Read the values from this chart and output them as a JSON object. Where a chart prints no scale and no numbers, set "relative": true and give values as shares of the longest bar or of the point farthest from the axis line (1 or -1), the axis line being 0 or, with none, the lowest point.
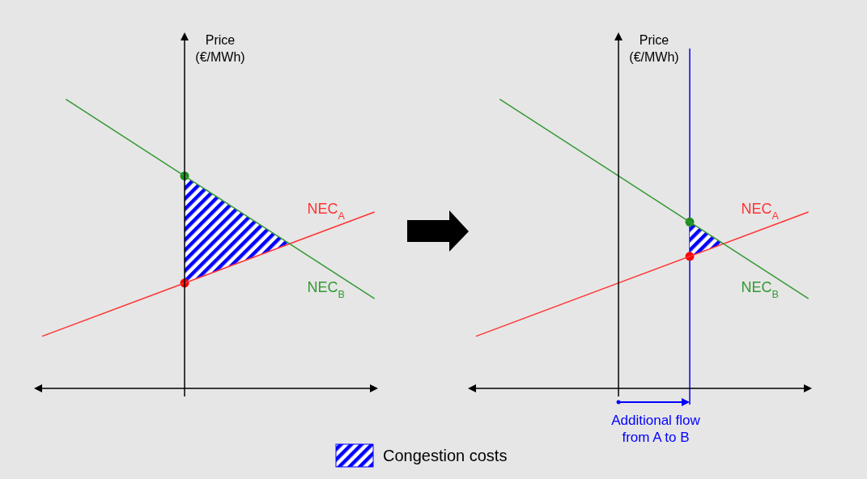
{
  "chart_data": [
    {
      "type": "line",
      "relative": true,
      "ylabel": "Price\n(€/MWh)",
      "categories": [
        null,
        null,
        null,
        null,
        null,
        null,
        null,
        null,
        null,
        null,
        null,
        null,
        null,
        null,
        null
      ],
      "series": [
        {
          "name": "NEC$_{A}$",
          "color": "#ff3333",
          "values": [
            0.18,
            null,
            null,
            null,
            null,
            null,
            null,
            null,
            null,
            null,
            null,
            null,
            null,
            null,
            0.61
          ]
        },
        {
          "name": "NEC$_{B}$",
          "color": "#339933",
          "values": [
            null,
            1.0,
            null,
            null,
            null,
            null,
            null,
            null,
            null,
            null,
            null,
            null,
            null,
            null,
            0.31
          ]
        }
      ],
      "annotations": [
        "Congestion costs"
      ]
    },
    {
      "type": "line",
      "relative": true,
      "ylabel": "Price\n(€/MWh)",
      "categories": [
        null,
        null,
        null,
        null,
        null,
        null,
        null,
        null,
        null,
        null,
        null,
        null,
        null,
        null,
        null
      ],
      "series": [
        {
          "name": "NEC$_{A}$",
          "color": "#ff3333",
          "values": [
            0.18,
            null,
            null,
            null,
            null,
            null,
            null,
            null,
            null,
            null,
            null,
            null,
            null,
            null,
            0.61
          ]
        },
        {
          "name": "NEC$_{B}$",
          "color": "#339933",
          "values": [
            null,
            1.0,
            null,
            null,
            null,
            null,
            null,
            null,
            null,
            null,
            null,
            null,
            null,
            null,
            0.31
          ]
        }
      ],
      "annotations": [
        "Additional flow\nfrom A to B"
      ]
    }
  ]
}
